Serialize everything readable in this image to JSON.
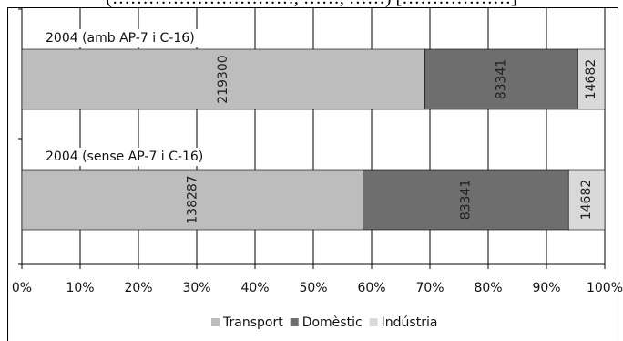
{
  "header_fragment": "(…………………………, ……, ……) [………………]",
  "colors": {
    "transport": "#bdbdbd",
    "domestic": "#6e6e6e",
    "industry": "#d9d9d9",
    "grid": "#000000",
    "text": "#111111"
  },
  "chart_data": {
    "type": "bar",
    "orientation": "horizontal",
    "stacked": "percent",
    "title": "",
    "xlabel": "",
    "ylabel": "",
    "xlim": [
      0,
      100
    ],
    "x_ticks": [
      "0%",
      "10%",
      "20%",
      "30%",
      "40%",
      "50%",
      "60%",
      "70%",
      "80%",
      "90%",
      "100%"
    ],
    "categories": [
      "2004 (amb AP-7 i C-16)",
      "2004 (sense AP-7 i C-16)"
    ],
    "series": [
      {
        "name": "Transport",
        "values": [
          219300,
          138287
        ]
      },
      {
        "name": "Domèstic",
        "values": [
          83341,
          83341
        ]
      },
      {
        "name": "Indústria",
        "values": [
          14682,
          14682
        ]
      }
    ],
    "grid": true,
    "legend_placement": "bottom"
  }
}
